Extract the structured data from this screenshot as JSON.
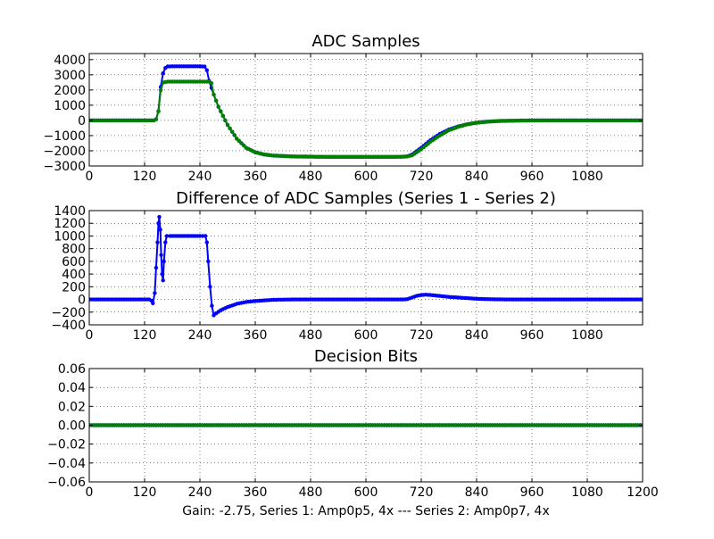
{
  "figure": {
    "xlabel": "Gain: -2.75, Series 1: Amp0p5, 4x --- Series 2: Amp0p7, 4x",
    "colors": {
      "series1": "#0000ff",
      "series2": "#007f00",
      "grid": "#000000",
      "background": "#ffffff"
    }
  },
  "chart_data": [
    {
      "type": "line",
      "title": "ADC Samples",
      "xlim": [
        0,
        1200
      ],
      "ylim": [
        -3000,
        4400
      ],
      "xticks": [
        0,
        120,
        240,
        360,
        480,
        600,
        720,
        840,
        960,
        1080
      ],
      "yticks": [
        -3000,
        -2000,
        -1000,
        0,
        1000,
        2000,
        3000,
        4000
      ],
      "grid": true,
      "series": [
        {
          "color": "#0000ff",
          "points": [
            [
              0,
              0
            ],
            [
              100,
              0
            ],
            [
              140,
              0
            ],
            [
              145,
              80
            ],
            [
              150,
              600
            ],
            [
              155,
              2200
            ],
            [
              160,
              3100
            ],
            [
              165,
              3450
            ],
            [
              170,
              3550
            ],
            [
              180,
              3560
            ],
            [
              200,
              3560
            ],
            [
              240,
              3560
            ],
            [
              250,
              3540
            ],
            [
              255,
              3300
            ],
            [
              260,
              2600
            ],
            [
              270,
              1700
            ],
            [
              280,
              900
            ],
            [
              290,
              300
            ],
            [
              300,
              -300
            ],
            [
              320,
              -1200
            ],
            [
              340,
              -1800
            ],
            [
              360,
              -2100
            ],
            [
              380,
              -2250
            ],
            [
              400,
              -2320
            ],
            [
              440,
              -2370
            ],
            [
              480,
              -2390
            ],
            [
              520,
              -2400
            ],
            [
              600,
              -2400
            ],
            [
              660,
              -2400
            ],
            [
              680,
              -2390
            ],
            [
              690,
              -2360
            ],
            [
              700,
              -2250
            ],
            [
              720,
              -1800
            ],
            [
              740,
              -1300
            ],
            [
              760,
              -900
            ],
            [
              780,
              -600
            ],
            [
              800,
              -400
            ],
            [
              820,
              -250
            ],
            [
              840,
              -150
            ],
            [
              860,
              -90
            ],
            [
              880,
              -50
            ],
            [
              900,
              -30
            ],
            [
              940,
              -10
            ],
            [
              1000,
              0
            ],
            [
              1100,
              0
            ],
            [
              1200,
              0
            ]
          ]
        },
        {
          "color": "#007f00",
          "points": [
            [
              0,
              0
            ],
            [
              100,
              0
            ],
            [
              140,
              0
            ],
            [
              145,
              80
            ],
            [
              150,
              600
            ],
            [
              155,
              2000
            ],
            [
              160,
              2500
            ],
            [
              170,
              2550
            ],
            [
              200,
              2550
            ],
            [
              260,
              2550
            ],
            [
              265,
              2450
            ],
            [
              270,
              1700
            ],
            [
              280,
              900
            ],
            [
              290,
              300
            ],
            [
              300,
              -300
            ],
            [
              320,
              -1200
            ],
            [
              340,
              -1800
            ],
            [
              360,
              -2100
            ],
            [
              380,
              -2250
            ],
            [
              400,
              -2320
            ],
            [
              440,
              -2370
            ],
            [
              480,
              -2390
            ],
            [
              520,
              -2400
            ],
            [
              600,
              -2400
            ],
            [
              660,
              -2400
            ],
            [
              680,
              -2390
            ],
            [
              690,
              -2370
            ],
            [
              700,
              -2300
            ],
            [
              720,
              -1900
            ],
            [
              740,
              -1400
            ],
            [
              760,
              -1000
            ],
            [
              780,
              -650
            ],
            [
              800,
              -430
            ],
            [
              820,
              -260
            ],
            [
              840,
              -160
            ],
            [
              860,
              -95
            ],
            [
              880,
              -55
            ],
            [
              900,
              -30
            ],
            [
              940,
              -10
            ],
            [
              1000,
              0
            ],
            [
              1100,
              0
            ],
            [
              1200,
              0
            ]
          ]
        }
      ]
    },
    {
      "type": "line",
      "title": "Difference of ADC Samples (Series 1 - Series 2)",
      "xlim": [
        0,
        1200
      ],
      "ylim": [
        -400,
        1400
      ],
      "xticks": [
        0,
        120,
        240,
        360,
        480,
        600,
        720,
        840,
        960,
        1080
      ],
      "yticks": [
        -400,
        -200,
        0,
        200,
        400,
        600,
        800,
        1000,
        1200,
        1400
      ],
      "grid": true,
      "series": [
        {
          "color": "#0000ff",
          "points": [
            [
              0,
              0
            ],
            [
              130,
              0
            ],
            [
              135,
              -20
            ],
            [
              138,
              -60
            ],
            [
              142,
              100
            ],
            [
              145,
              500
            ],
            [
              148,
              900
            ],
            [
              150,
              1200
            ],
            [
              152,
              1300
            ],
            [
              154,
              1100
            ],
            [
              156,
              700
            ],
            [
              158,
              400
            ],
            [
              160,
              300
            ],
            [
              162,
              600
            ],
            [
              165,
              900
            ],
            [
              168,
              1000
            ],
            [
              175,
              1000
            ],
            [
              200,
              1000
            ],
            [
              240,
              1000
            ],
            [
              252,
              1000
            ],
            [
              255,
              900
            ],
            [
              258,
              600
            ],
            [
              262,
              200
            ],
            [
              266,
              -100
            ],
            [
              270,
              -250
            ],
            [
              275,
              -220
            ],
            [
              285,
              -170
            ],
            [
              300,
              -120
            ],
            [
              320,
              -70
            ],
            [
              340,
              -40
            ],
            [
              360,
              -25
            ],
            [
              380,
              -15
            ],
            [
              400,
              -5
            ],
            [
              450,
              0
            ],
            [
              680,
              0
            ],
            [
              690,
              5
            ],
            [
              700,
              30
            ],
            [
              710,
              55
            ],
            [
              720,
              70
            ],
            [
              730,
              75
            ],
            [
              740,
              70
            ],
            [
              760,
              55
            ],
            [
              780,
              40
            ],
            [
              800,
              30
            ],
            [
              820,
              20
            ],
            [
              840,
              10
            ],
            [
              860,
              5
            ],
            [
              900,
              0
            ],
            [
              1000,
              0
            ],
            [
              1200,
              0
            ]
          ]
        }
      ]
    },
    {
      "type": "line",
      "title": "Decision Bits",
      "xlim": [
        0,
        1200
      ],
      "ylim": [
        -0.06,
        0.06
      ],
      "xticks": [
        0,
        120,
        240,
        360,
        480,
        600,
        720,
        840,
        960,
        1080,
        1200
      ],
      "yticks": [
        -0.06,
        -0.04,
        -0.02,
        0.0,
        0.02,
        0.04,
        0.06
      ],
      "ytick_labels": [
        "−0.06",
        "−0.04",
        "−0.02",
        "0.00",
        "0.02",
        "0.04",
        "0.06"
      ],
      "grid": true,
      "series": [
        {
          "color": "#0000ff",
          "points": [
            [
              0,
              0
            ],
            [
              1200,
              0
            ]
          ]
        },
        {
          "color": "#007f00",
          "points": [
            [
              0,
              0
            ],
            [
              1200,
              0
            ]
          ]
        }
      ]
    }
  ]
}
